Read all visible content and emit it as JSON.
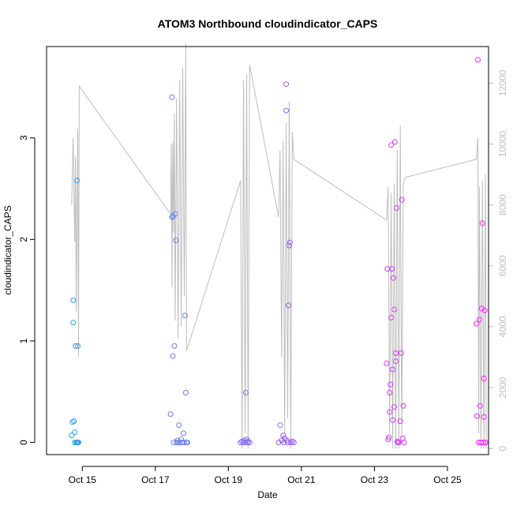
{
  "chart_data": {
    "type": "scatter",
    "title": "ATOM3 Northbound cloudindicator_CAPS",
    "xlabel": "Date",
    "ylabel": "cloudindicator_CAPS",
    "xlim": [
      "2023-10-14 00:30",
      "2023-10-26 03:00"
    ],
    "ylim": [
      -0.12,
      3.9
    ],
    "x_ticks": [
      "Oct 15",
      "Oct 17",
      "Oct 19",
      "Oct 21",
      "Oct 23",
      "Oct 25"
    ],
    "y_ticks": [
      0,
      1,
      2,
      3
    ],
    "y2lim": [
      -200,
      13200
    ],
    "y2_ticks": [
      0,
      2000,
      4000,
      6000,
      8000,
      10000,
      12000
    ],
    "y2_color": "#bdbdbd",
    "grid": false,
    "point_color_range": [
      "#27a7e6",
      "#ff21ff"
    ],
    "series": [
      {
        "type": "scatter",
        "values": [
          [
            "2023-10-14 17:00",
            0.07
          ],
          [
            "2023-10-14 17:30",
            0.2
          ],
          [
            "2023-10-14 18:00",
            1.4
          ],
          [
            "2023-10-14 18:00",
            1.18
          ],
          [
            "2023-10-14 18:30",
            0.21
          ],
          [
            "2023-10-14 19:00",
            0.1
          ],
          [
            "2023-10-14 19:00",
            0.0
          ],
          [
            "2023-10-14 19:30",
            0.95
          ],
          [
            "2023-10-14 20:00",
            0.0
          ],
          [
            "2023-10-14 20:30",
            0.0
          ],
          [
            "2023-10-14 20:30",
            2.58
          ],
          [
            "2023-10-14 21:00",
            0.95
          ],
          [
            "2023-10-14 21:00",
            0.0
          ],
          [
            "2023-10-14 21:30",
            0.0
          ],
          [
            "2023-10-17 10:00",
            0.28
          ],
          [
            "2023-10-17 11:00",
            3.4
          ],
          [
            "2023-10-17 11:00",
            2.22
          ],
          [
            "2023-10-17 11:30",
            2.23
          ],
          [
            "2023-10-17 11:30",
            0.85
          ],
          [
            "2023-10-17 12:00",
            0.0
          ],
          [
            "2023-10-17 12:30",
            0.95
          ],
          [
            "2023-10-17 13:00",
            2.25
          ],
          [
            "2023-10-17 13:30",
            1.99
          ],
          [
            "2023-10-17 14:00",
            0.0
          ],
          [
            "2023-10-17 14:30",
            0.02
          ],
          [
            "2023-10-17 15:00",
            0.0
          ],
          [
            "2023-10-17 15:30",
            0.17
          ],
          [
            "2023-10-17 16:00",
            0.0
          ],
          [
            "2023-10-17 17:00",
            0.03
          ],
          [
            "2023-10-17 17:30",
            0.0
          ],
          [
            "2023-10-17 18:30",
            0.09
          ],
          [
            "2023-10-17 19:00",
            0.0
          ],
          [
            "2023-10-17 19:30",
            1.25
          ],
          [
            "2023-10-17 20:00",
            0.49
          ],
          [
            "2023-10-17 20:30",
            0.0
          ],
          [
            "2023-10-17 21:00",
            0.0
          ],
          [
            "2023-10-19 08:00",
            0.0
          ],
          [
            "2023-10-19 09:00",
            0.01
          ],
          [
            "2023-10-19 10:00",
            0.0
          ],
          [
            "2023-10-19 10:30",
            0.02
          ],
          [
            "2023-10-19 11:00",
            0.0
          ],
          [
            "2023-10-19 11:30",
            0.49
          ],
          [
            "2023-10-19 12:00",
            0.03
          ],
          [
            "2023-10-19 12:30",
            0.0
          ],
          [
            "2023-10-19 13:00",
            0.01
          ],
          [
            "2023-10-19 14:00",
            0.0
          ],
          [
            "2023-10-20 09:00",
            0.0
          ],
          [
            "2023-10-20 10:00",
            0.17
          ],
          [
            "2023-10-20 11:00",
            0.02
          ],
          [
            "2023-10-20 12:00",
            0.07
          ],
          [
            "2023-10-20 12:30",
            0.0
          ],
          [
            "2023-10-20 13:00",
            0.04
          ],
          [
            "2023-10-20 14:00",
            3.53
          ],
          [
            "2023-10-20 14:00",
            3.27
          ],
          [
            "2023-10-20 14:30",
            0.02
          ],
          [
            "2023-10-20 15:00",
            0.0
          ],
          [
            "2023-10-20 15:30",
            1.35
          ],
          [
            "2023-10-20 16:00",
            1.94
          ],
          [
            "2023-10-20 16:30",
            1.97
          ],
          [
            "2023-10-20 17:00",
            0.0
          ],
          [
            "2023-10-20 18:00",
            0.01
          ],
          [
            "2023-10-20 19:00",
            0.0
          ],
          [
            "2023-10-23 08:00",
            0.78
          ],
          [
            "2023-10-23 08:30",
            1.71
          ],
          [
            "2023-10-23 09:00",
            0.03
          ],
          [
            "2023-10-23 09:30",
            0.05
          ],
          [
            "2023-10-23 10:00",
            0.3
          ],
          [
            "2023-10-23 10:00",
            0.49
          ],
          [
            "2023-10-23 10:30",
            0.57
          ],
          [
            "2023-10-23 11:00",
            1.23
          ],
          [
            "2023-10-23 11:00",
            2.93
          ],
          [
            "2023-10-23 11:30",
            1.71
          ],
          [
            "2023-10-23 12:00",
            0.72
          ],
          [
            "2023-10-23 12:00",
            0.22
          ],
          [
            "2023-10-23 12:30",
            1.62
          ],
          [
            "2023-10-23 13:00",
            1.31
          ],
          [
            "2023-10-23 13:00",
            0.35
          ],
          [
            "2023-10-23 13:30",
            2.96
          ],
          [
            "2023-10-23 14:00",
            0.88
          ],
          [
            "2023-10-23 14:00",
            0.8
          ],
          [
            "2023-10-23 14:30",
            2.31
          ],
          [
            "2023-10-23 15:00",
            0.01
          ],
          [
            "2023-10-23 15:30",
            0.0
          ],
          [
            "2023-10-23 16:00",
            0.0
          ],
          [
            "2023-10-23 17:00",
            0.21
          ],
          [
            "2023-10-23 17:30",
            0.88
          ],
          [
            "2023-10-23 18:00",
            2.39
          ],
          [
            "2023-10-23 18:30",
            0.04
          ],
          [
            "2023-10-23 19:00",
            0.36
          ],
          [
            "2023-10-23 19:30",
            0.0
          ],
          [
            "2023-10-25 19:00",
            1.17
          ],
          [
            "2023-10-25 19:30",
            0.26
          ],
          [
            "2023-10-25 20:00",
            3.77
          ],
          [
            "2023-10-25 20:30",
            0.0
          ],
          [
            "2023-10-25 21:00",
            1.21
          ],
          [
            "2023-10-25 21:30",
            0.36
          ],
          [
            "2023-10-25 22:00",
            0.0
          ],
          [
            "2023-10-25 22:30",
            1.32
          ],
          [
            "2023-10-25 23:00",
            2.16
          ],
          [
            "2023-10-25 23:30",
            0.0
          ],
          [
            "2023-10-26 00:00",
            0.63
          ],
          [
            "2023-10-26 00:00",
            0.25
          ],
          [
            "2023-10-26 00:30",
            1.3
          ],
          [
            "2023-10-26 01:00",
            0.0
          ],
          [
            "2023-10-26 01:00",
            0.0
          ]
        ]
      },
      {
        "type": "line",
        "axis": "right",
        "color": "#bdbdbd",
        "values": [
          [
            "2023-10-14 17:00",
            8000
          ],
          [
            "2023-10-14 18:00",
            10200
          ],
          [
            "2023-10-14 19:00",
            6800
          ],
          [
            "2023-10-14 19:30",
            9600
          ],
          [
            "2023-10-14 20:00",
            4500
          ],
          [
            "2023-10-14 21:00",
            10500
          ],
          [
            "2023-10-14 21:30",
            3000
          ],
          [
            "2023-10-14 22:00",
            11900
          ],
          [
            "2023-10-17 10:00",
            7700
          ],
          [
            "2023-10-17 10:30",
            10000
          ],
          [
            "2023-10-17 11:00",
            5300
          ],
          [
            "2023-10-17 11:30",
            10100
          ],
          [
            "2023-10-17 12:00",
            7100
          ],
          [
            "2023-10-17 12:30",
            11000
          ],
          [
            "2023-10-17 13:00",
            4200
          ],
          [
            "2023-10-17 14:00",
            11500
          ],
          [
            "2023-10-17 15:00",
            3600
          ],
          [
            "2023-10-17 16:00",
            12100
          ],
          [
            "2023-10-17 17:00",
            4000
          ],
          [
            "2023-10-17 18:00",
            12500
          ],
          [
            "2023-10-17 19:00",
            5000
          ],
          [
            "2023-10-17 20:00",
            13300
          ],
          [
            "2023-10-17 20:30",
            3200
          ],
          [
            "2023-10-19 08:00",
            8800
          ],
          [
            "2023-10-19 09:00",
            0
          ],
          [
            "2023-10-19 10:00",
            12100
          ],
          [
            "2023-10-19 11:00",
            500
          ],
          [
            "2023-10-19 12:00",
            12300
          ],
          [
            "2023-10-19 13:00",
            0
          ],
          [
            "2023-10-19 14:00",
            12600
          ],
          [
            "2023-10-20 09:00",
            7600
          ],
          [
            "2023-10-20 10:00",
            9800
          ],
          [
            "2023-10-20 11:00",
            3000
          ],
          [
            "2023-10-20 12:00",
            10100
          ],
          [
            "2023-10-20 13:00",
            500
          ],
          [
            "2023-10-20 14:00",
            10700
          ],
          [
            "2023-10-20 15:00",
            1000
          ],
          [
            "2023-10-20 16:00",
            11400
          ],
          [
            "2023-10-20 17:00",
            0
          ],
          [
            "2023-10-20 18:00",
            10400
          ],
          [
            "2023-10-20 19:00",
            9500
          ],
          [
            "2023-10-23 08:00",
            7500
          ],
          [
            "2023-10-23 09:00",
            8600
          ],
          [
            "2023-10-23 10:00",
            500
          ],
          [
            "2023-10-23 11:00",
            8400
          ],
          [
            "2023-10-23 12:00",
            0
          ],
          [
            "2023-10-23 13:00",
            8700
          ],
          [
            "2023-10-23 14:00",
            0
          ],
          [
            "2023-10-23 15:00",
            9800
          ],
          [
            "2023-10-23 16:00",
            0
          ],
          [
            "2023-10-23 17:00",
            10600
          ],
          [
            "2023-10-23 18:00",
            300
          ],
          [
            "2023-10-23 19:00",
            8700
          ],
          [
            "2023-10-23 20:00",
            8900
          ],
          [
            "2023-10-25 19:00",
            9500
          ],
          [
            "2023-10-25 20:00",
            10200
          ],
          [
            "2023-10-25 20:30",
            500
          ],
          [
            "2023-10-25 21:00",
            8600
          ],
          [
            "2023-10-25 22:00",
            0
          ],
          [
            "2023-10-25 23:00",
            8800
          ],
          [
            "2023-10-26 00:00",
            0
          ],
          [
            "2023-10-26 01:00",
            9000
          ],
          [
            "2023-10-26 01:30",
            0
          ]
        ]
      }
    ]
  }
}
